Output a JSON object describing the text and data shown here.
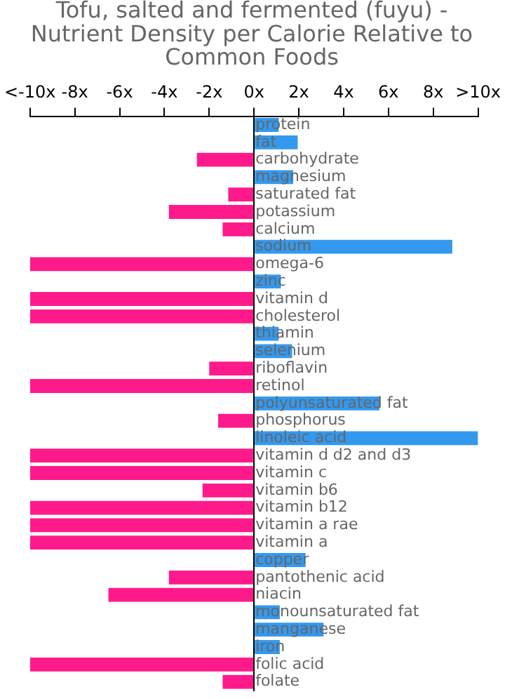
{
  "chart_data": {
    "type": "bar",
    "orientation": "horizontal",
    "title": "Tofu, salted and fermented (fuyu) - Nutrient Density per Calorie Relative to Common Foods",
    "categories": [
      "protein",
      "fat",
      "carbohydrate",
      "magnesium",
      "saturated fat",
      "potassium",
      "calcium",
      "sodium",
      "omega-6",
      "zinc",
      "vitamin d",
      "cholesterol",
      "thiamin",
      "selenium",
      "riboflavin",
      "retinol",
      "polyunsaturated fat",
      "phosphorus",
      "linoleic acid",
      "vitamin d d2 and d3",
      "vitamin c",
      "vitamin b6",
      "vitamin b12",
      "vitamin a rae",
      "vitamin a",
      "copper",
      "pantothenic acid",
      "niacin",
      "monounsaturated fat",
      "manganese",
      "iron",
      "folic acid",
      "folate"
    ],
    "values": [
      1.1,
      1.95,
      -2.55,
      1.75,
      -1.15,
      -3.8,
      -1.4,
      8.85,
      -10,
      1.2,
      -10,
      -10,
      1.1,
      1.7,
      -2.0,
      -10,
      5.6,
      -1.6,
      10,
      -10,
      -10,
      -2.3,
      -10,
      -10,
      -10,
      2.3,
      -3.8,
      -6.5,
      1.15,
      3.1,
      1.15,
      -10,
      -1.4
    ],
    "colors": [
      "#3399ee",
      "#3399ee",
      "#ff1a8c",
      "#3399ee",
      "#ff1a8c",
      "#ff1a8c",
      "#ff1a8c",
      "#3399ee",
      "#ff1a8c",
      "#3399ee",
      "#ff1a8c",
      "#ff1a8c",
      "#3399ee",
      "#3399ee",
      "#ff1a8c",
      "#ff1a8c",
      "#3399ee",
      "#ff1a8c",
      "#3399ee",
      "#ff1a8c",
      "#ff1a8c",
      "#ff1a8c",
      "#ff1a8c",
      "#ff1a8c",
      "#ff1a8c",
      "#3399ee",
      "#ff1a8c",
      "#ff1a8c",
      "#3399ee",
      "#3399ee",
      "#3399ee",
      "#ff1a8c",
      "#ff1a8c"
    ],
    "xlim": [
      -10,
      10
    ],
    "xticks": [
      {
        "value": -10,
        "label": "<-10x"
      },
      {
        "value": -8,
        "label": "-8x"
      },
      {
        "value": -6,
        "label": "-6x"
      },
      {
        "value": -4,
        "label": "-4x"
      },
      {
        "value": -2,
        "label": "-2x"
      },
      {
        "value": 0,
        "label": "0x"
      },
      {
        "value": 2,
        "label": "2x"
      },
      {
        "value": 4,
        "label": "4x"
      },
      {
        "value": 6,
        "label": "6x"
      },
      {
        "value": 8,
        "label": "8x"
      },
      {
        "value": 10,
        "label": ">10x"
      }
    ],
    "grid": false,
    "legend": false
  }
}
